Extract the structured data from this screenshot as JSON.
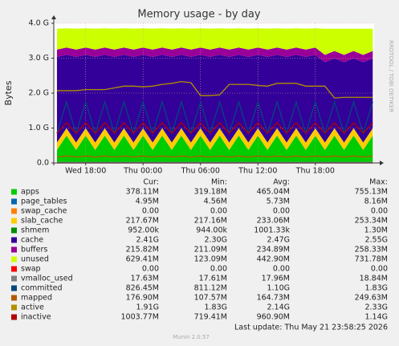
{
  "chart_data": {
    "type": "area",
    "title": "Memory usage - by day",
    "ylabel": "Bytes",
    "side_text": "RRDTOOL / TOBI OETIKER",
    "footer": "Last update: Thu May 21 23:58:25 2026",
    "version": "Munin 2.0.57",
    "stat_headers": [
      "Cur:",
      "Min:",
      "Avg:",
      "Max:"
    ],
    "ylim": [
      0,
      4
    ],
    "yticks": [
      {
        "value": 0,
        "label": "0.0"
      },
      {
        "value": 1,
        "label": "1.0 G"
      },
      {
        "value": 2,
        "label": "2.0 G"
      },
      {
        "value": 3,
        "label": "3.0 G"
      },
      {
        "value": 4,
        "label": "4.0 G"
      }
    ],
    "xlim": [
      14.67,
      48.14
    ],
    "xticks": [
      {
        "value": 18,
        "label": "Wed 18:00"
      },
      {
        "value": 24,
        "label": "Thu 00:00"
      },
      {
        "value": 30,
        "label": "Thu 06:00"
      },
      {
        "value": 36,
        "label": "Thu 12:00"
      },
      {
        "value": 42,
        "label": "Thu 18:00"
      }
    ],
    "grid": true,
    "x": [
      15,
      16,
      17,
      18,
      19,
      20,
      21,
      22,
      23,
      24,
      25,
      26,
      27,
      28,
      29,
      30,
      31,
      32,
      33,
      34,
      35,
      36,
      37,
      38,
      39,
      40,
      41,
      42,
      43,
      44,
      45,
      46,
      47,
      48
    ],
    "series": [
      {
        "name": "apps",
        "style": "area",
        "color": "#00cc00",
        "stats": [
          "378.11M",
          "319.18M",
          "465.04M",
          "755.13M"
        ],
        "values": [
          0.37,
          0.78,
          0.37,
          0.78,
          0.37,
          0.78,
          0.37,
          0.78,
          0.37,
          0.78,
          0.37,
          0.78,
          0.37,
          0.78,
          0.37,
          0.78,
          0.37,
          0.78,
          0.37,
          0.78,
          0.37,
          0.78,
          0.37,
          0.78,
          0.37,
          0.78,
          0.37,
          0.78,
          0.37,
          0.78,
          0.37,
          0.78,
          0.37,
          0.78
        ]
      },
      {
        "name": "page_tables",
        "style": "area",
        "color": "#0066b3",
        "stats": [
          "4.95M",
          "4.56M",
          "5.73M",
          "8.16M"
        ],
        "values": [
          0.005,
          0.005,
          0.005,
          0.005,
          0.005,
          0.005,
          0.005,
          0.005,
          0.005,
          0.005,
          0.005,
          0.005,
          0.005,
          0.005,
          0.005,
          0.005,
          0.005,
          0.005,
          0.005,
          0.005,
          0.005,
          0.005,
          0.005,
          0.005,
          0.005,
          0.005,
          0.005,
          0.005,
          0.005,
          0.005,
          0.005,
          0.005,
          0.005,
          0.005
        ]
      },
      {
        "name": "swap_cache",
        "style": "area",
        "color": "#ff8000",
        "stats": [
          "0.00",
          "0.00",
          "0.00",
          "0.00"
        ],
        "values": [
          0,
          0,
          0,
          0,
          0,
          0,
          0,
          0,
          0,
          0,
          0,
          0,
          0,
          0,
          0,
          0,
          0,
          0,
          0,
          0,
          0,
          0,
          0,
          0,
          0,
          0,
          0,
          0,
          0,
          0,
          0,
          0,
          0,
          0
        ]
      },
      {
        "name": "slab_cache",
        "style": "area",
        "color": "#ffcc00",
        "stats": [
          "217.67M",
          "217.16M",
          "233.06M",
          "253.34M"
        ],
        "values": [
          0.21,
          0.21,
          0.21,
          0.21,
          0.21,
          0.21,
          0.21,
          0.21,
          0.21,
          0.21,
          0.21,
          0.21,
          0.21,
          0.21,
          0.21,
          0.21,
          0.21,
          0.21,
          0.21,
          0.21,
          0.21,
          0.21,
          0.21,
          0.21,
          0.21,
          0.21,
          0.21,
          0.21,
          0.21,
          0.21,
          0.21,
          0.21,
          0.21,
          0.21
        ]
      },
      {
        "name": "shmem",
        "style": "area",
        "color": "#008f00",
        "stats": [
          "952.00k",
          "944.00k",
          "1001.33k",
          "1.30M"
        ],
        "values": [
          0.001,
          0.001,
          0.001,
          0.001,
          0.001,
          0.001,
          0.001,
          0.001,
          0.001,
          0.001,
          0.001,
          0.001,
          0.001,
          0.001,
          0.001,
          0.001,
          0.001,
          0.001,
          0.001,
          0.001,
          0.001,
          0.001,
          0.001,
          0.001,
          0.001,
          0.001,
          0.001,
          0.001,
          0.001,
          0.001,
          0.001,
          0.001,
          0.001,
          0.001
        ]
      },
      {
        "name": "cache",
        "style": "area",
        "color": "#330099",
        "stats": [
          "2.41G",
          "2.30G",
          "2.47G",
          "2.55G"
        ],
        "values": [
          2.45,
          2.1,
          2.45,
          2.1,
          2.45,
          2.1,
          2.45,
          2.1,
          2.45,
          2.1,
          2.45,
          2.1,
          2.45,
          2.1,
          2.45,
          2.1,
          2.45,
          2.1,
          2.45,
          2.1,
          2.45,
          2.1,
          2.45,
          2.1,
          2.45,
          2.1,
          2.45,
          2.1,
          2.3,
          2.0,
          2.3,
          2.0,
          2.3,
          2.0
        ]
      },
      {
        "name": "buffers",
        "style": "area",
        "color": "#990099",
        "stats": [
          "215.82M",
          "211.09M",
          "234.89M",
          "258.33M"
        ],
        "values": [
          0.21,
          0.21,
          0.21,
          0.21,
          0.21,
          0.21,
          0.21,
          0.21,
          0.21,
          0.21,
          0.21,
          0.21,
          0.21,
          0.21,
          0.21,
          0.21,
          0.21,
          0.21,
          0.21,
          0.21,
          0.21,
          0.21,
          0.21,
          0.21,
          0.21,
          0.21,
          0.21,
          0.21,
          0.21,
          0.21,
          0.21,
          0.21,
          0.21,
          0.21
        ]
      },
      {
        "name": "unused",
        "style": "area",
        "color": "#ccff00",
        "stats": [
          "629.41M",
          "123.09M",
          "442.90M",
          "731.78M"
        ],
        "values": [
          0.6,
          0.55,
          0.6,
          0.55,
          0.6,
          0.55,
          0.6,
          0.55,
          0.6,
          0.55,
          0.6,
          0.55,
          0.6,
          0.55,
          0.6,
          0.55,
          0.6,
          0.55,
          0.6,
          0.55,
          0.6,
          0.55,
          0.6,
          0.55,
          0.6,
          0.55,
          0.6,
          0.55,
          0.75,
          0.64,
          0.75,
          0.64,
          0.75,
          0.64
        ]
      },
      {
        "name": "swap",
        "style": "line",
        "color": "#ff0000",
        "stats": [
          "0.00",
          "0.00",
          "0.00",
          "0.00"
        ],
        "values": [
          0,
          0,
          0,
          0,
          0,
          0,
          0,
          0,
          0,
          0,
          0,
          0,
          0,
          0,
          0,
          0,
          0,
          0,
          0,
          0,
          0,
          0,
          0,
          0,
          0,
          0,
          0,
          0,
          0,
          0,
          0,
          0,
          0,
          0
        ]
      },
      {
        "name": "vmalloc_used",
        "style": "line",
        "color": "#808080",
        "stats": [
          "17.63M",
          "17.61M",
          "17.96M",
          "18.84M"
        ],
        "values": [
          0.018,
          0.018,
          0.018,
          0.018,
          0.018,
          0.018,
          0.018,
          0.018,
          0.018,
          0.018,
          0.018,
          0.018,
          0.018,
          0.018,
          0.018,
          0.018,
          0.018,
          0.018,
          0.018,
          0.018,
          0.018,
          0.018,
          0.018,
          0.018,
          0.018,
          0.018,
          0.018,
          0.018,
          0.018,
          0.018,
          0.018,
          0.018,
          0.018,
          0.018
        ]
      },
      {
        "name": "committed",
        "style": "line",
        "color": "#00487d",
        "stats": [
          "826.45M",
          "811.12M",
          "1.10G",
          "1.83G"
        ],
        "values": [
          0.85,
          1.75,
          0.85,
          1.75,
          0.85,
          1.75,
          0.85,
          1.75,
          0.85,
          1.75,
          0.85,
          1.75,
          0.85,
          1.75,
          0.85,
          1.75,
          0.85,
          1.75,
          0.85,
          1.75,
          0.85,
          1.75,
          0.85,
          1.75,
          0.85,
          1.75,
          0.85,
          1.75,
          0.85,
          1.75,
          0.85,
          1.75,
          0.85,
          1.75
        ]
      },
      {
        "name": "mapped",
        "style": "line",
        "color": "#b35a00",
        "stats": [
          "176.90M",
          "107.57M",
          "164.73M",
          "249.63M"
        ],
        "values": [
          0.17,
          0.2,
          0.17,
          0.2,
          0.17,
          0.2,
          0.17,
          0.2,
          0.17,
          0.2,
          0.17,
          0.2,
          0.17,
          0.2,
          0.17,
          0.2,
          0.17,
          0.2,
          0.17,
          0.2,
          0.17,
          0.2,
          0.17,
          0.2,
          0.17,
          0.2,
          0.17,
          0.2,
          0.17,
          0.2,
          0.17,
          0.2,
          0.17,
          0.2
        ]
      },
      {
        "name": "active",
        "style": "line",
        "color": "#b38f00",
        "stats": [
          "1.91G",
          "1.83G",
          "2.14G",
          "2.33G"
        ],
        "values": [
          2.07,
          2.07,
          2.07,
          2.1,
          2.1,
          2.1,
          2.15,
          2.2,
          2.2,
          2.18,
          2.2,
          2.25,
          2.28,
          2.33,
          2.3,
          1.93,
          1.93,
          1.95,
          2.25,
          2.25,
          2.25,
          2.22,
          2.2,
          2.28,
          2.28,
          2.28,
          2.2,
          2.2,
          2.2,
          1.86,
          1.88,
          1.88,
          1.88,
          1.88
        ]
      },
      {
        "name": "inactive",
        "style": "line",
        "color": "#b30000",
        "stats": [
          "1003.77M",
          "719.41M",
          "960.90M",
          "1.14G"
        ],
        "values": [
          0.85,
          1.15,
          0.85,
          1.15,
          0.85,
          1.15,
          0.85,
          1.15,
          0.85,
          1.15,
          0.85,
          1.15,
          0.85,
          1.15,
          0.85,
          1.15,
          0.85,
          1.15,
          0.85,
          1.15,
          0.85,
          1.15,
          0.85,
          1.15,
          0.85,
          1.15,
          0.85,
          1.15,
          0.85,
          1.15,
          0.85,
          1.15,
          0.85,
          1.15
        ]
      }
    ]
  }
}
